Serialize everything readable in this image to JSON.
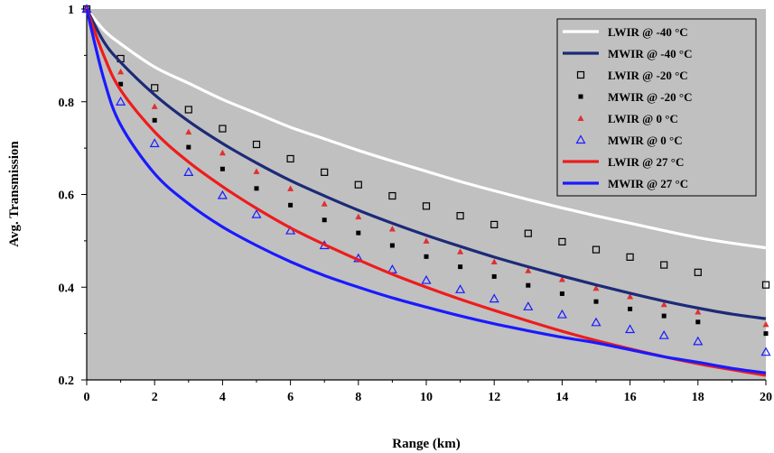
{
  "chart_data": {
    "type": "line",
    "title": "",
    "xlabel": "Range (km)",
    "ylabel": "Avg. Transmission",
    "xlim": [
      0,
      20
    ],
    "ylim": [
      0.2,
      1.0
    ],
    "xticks": [
      "0",
      "2",
      "4",
      "6",
      "8",
      "10",
      "12",
      "14",
      "16",
      "18",
      "20"
    ],
    "yticks": [
      "0.2",
      "0.4",
      "0.6",
      "0.8",
      "1"
    ],
    "plot_background": "#c0c0c0",
    "legend_position": "top-right",
    "series": [
      {
        "name": "LWIR @ -40 °C",
        "style": "line",
        "color": "#ffffff",
        "x": [
          0,
          0.5,
          1,
          2,
          3,
          4,
          5,
          6,
          7,
          8,
          9,
          10,
          11,
          12,
          13,
          14,
          15,
          16,
          17,
          18,
          19,
          20
        ],
        "y": [
          1.0,
          0.955,
          0.925,
          0.875,
          0.84,
          0.805,
          0.775,
          0.745,
          0.72,
          0.695,
          0.672,
          0.65,
          0.628,
          0.608,
          0.589,
          0.571,
          0.554,
          0.538,
          0.522,
          0.507,
          0.495,
          0.485
        ]
      },
      {
        "name": "MWIR @ -40 °C",
        "style": "line",
        "color": "#1c2a78",
        "x": [
          0,
          0.5,
          1,
          2,
          3,
          4,
          5,
          6,
          7,
          8,
          9,
          10,
          11,
          12,
          13,
          14,
          15,
          16,
          17,
          18,
          19,
          20
        ],
        "y": [
          1.0,
          0.93,
          0.885,
          0.815,
          0.758,
          0.71,
          0.668,
          0.63,
          0.597,
          0.566,
          0.538,
          0.512,
          0.488,
          0.465,
          0.444,
          0.424,
          0.405,
          0.387,
          0.37,
          0.355,
          0.342,
          0.332
        ]
      },
      {
        "name": "LWIR @ -20 °C",
        "style": "square-open",
        "color": "#000000",
        "x": [
          0,
          1,
          2,
          3,
          4,
          5,
          6,
          7,
          8,
          9,
          10,
          11,
          12,
          13,
          14,
          15,
          16,
          17,
          18,
          20
        ],
        "y": [
          1.0,
          0.893,
          0.83,
          0.783,
          0.742,
          0.708,
          0.677,
          0.648,
          0.621,
          0.597,
          0.575,
          0.554,
          0.535,
          0.516,
          0.498,
          0.481,
          0.465,
          0.448,
          0.432,
          0.405
        ]
      },
      {
        "name": "MWIR @ -20 °C",
        "style": "square-filled",
        "color": "#000000",
        "x": [
          0,
          1,
          2,
          3,
          4,
          5,
          6,
          7,
          8,
          9,
          10,
          11,
          12,
          13,
          14,
          15,
          16,
          17,
          18,
          20
        ],
        "y": [
          1.0,
          0.838,
          0.76,
          0.702,
          0.655,
          0.613,
          0.577,
          0.545,
          0.517,
          0.49,
          0.466,
          0.444,
          0.423,
          0.404,
          0.386,
          0.369,
          0.353,
          0.338,
          0.325,
          0.3
        ]
      },
      {
        "name": "LWIR @ 0 °C",
        "style": "triangle-filled",
        "color": "#e03030",
        "x": [
          0,
          1,
          2,
          3,
          4,
          5,
          6,
          7,
          8,
          9,
          10,
          11,
          12,
          13,
          14,
          15,
          16,
          17,
          18,
          20
        ],
        "y": [
          1.0,
          0.865,
          0.79,
          0.735,
          0.69,
          0.65,
          0.613,
          0.58,
          0.552,
          0.526,
          0.5,
          0.477,
          0.455,
          0.436,
          0.417,
          0.398,
          0.38,
          0.363,
          0.347,
          0.32
        ]
      },
      {
        "name": "MWIR @ 0 °C",
        "style": "triangle-open",
        "color": "#1a1aff",
        "x": [
          0,
          1,
          2,
          3,
          4,
          5,
          6,
          7,
          8,
          9,
          10,
          11,
          12,
          13,
          14,
          15,
          16,
          17,
          18,
          20
        ],
        "y": [
          1.0,
          0.8,
          0.71,
          0.648,
          0.598,
          0.557,
          0.522,
          0.49,
          0.462,
          0.438,
          0.415,
          0.395,
          0.375,
          0.358,
          0.341,
          0.324,
          0.309,
          0.296,
          0.283,
          0.26
        ]
      },
      {
        "name": "LWIR @ 27 °C",
        "style": "line",
        "color": "#ee1c1c",
        "x": [
          0,
          0.5,
          1,
          2,
          3,
          4,
          5,
          6,
          7,
          8,
          9,
          10,
          11,
          12,
          13,
          14,
          15,
          16,
          17,
          18,
          19,
          20
        ],
        "y": [
          1.0,
          0.9,
          0.825,
          0.735,
          0.67,
          0.617,
          0.57,
          0.528,
          0.492,
          0.459,
          0.428,
          0.4,
          0.374,
          0.35,
          0.327,
          0.305,
          0.285,
          0.267,
          0.25,
          0.235,
          0.222,
          0.21
        ]
      },
      {
        "name": "MWIR @ 27 °C",
        "style": "line",
        "color": "#1a1aff",
        "x": [
          0,
          0.5,
          1,
          2,
          3,
          4,
          5,
          6,
          7,
          8,
          9,
          10,
          11,
          12,
          13,
          14,
          15,
          16,
          17,
          18,
          19,
          20
        ],
        "y": [
          1.0,
          0.85,
          0.75,
          0.645,
          0.58,
          0.53,
          0.49,
          0.455,
          0.425,
          0.4,
          0.377,
          0.357,
          0.338,
          0.321,
          0.306,
          0.292,
          0.28,
          0.265,
          0.25,
          0.238,
          0.225,
          0.215
        ]
      }
    ]
  }
}
